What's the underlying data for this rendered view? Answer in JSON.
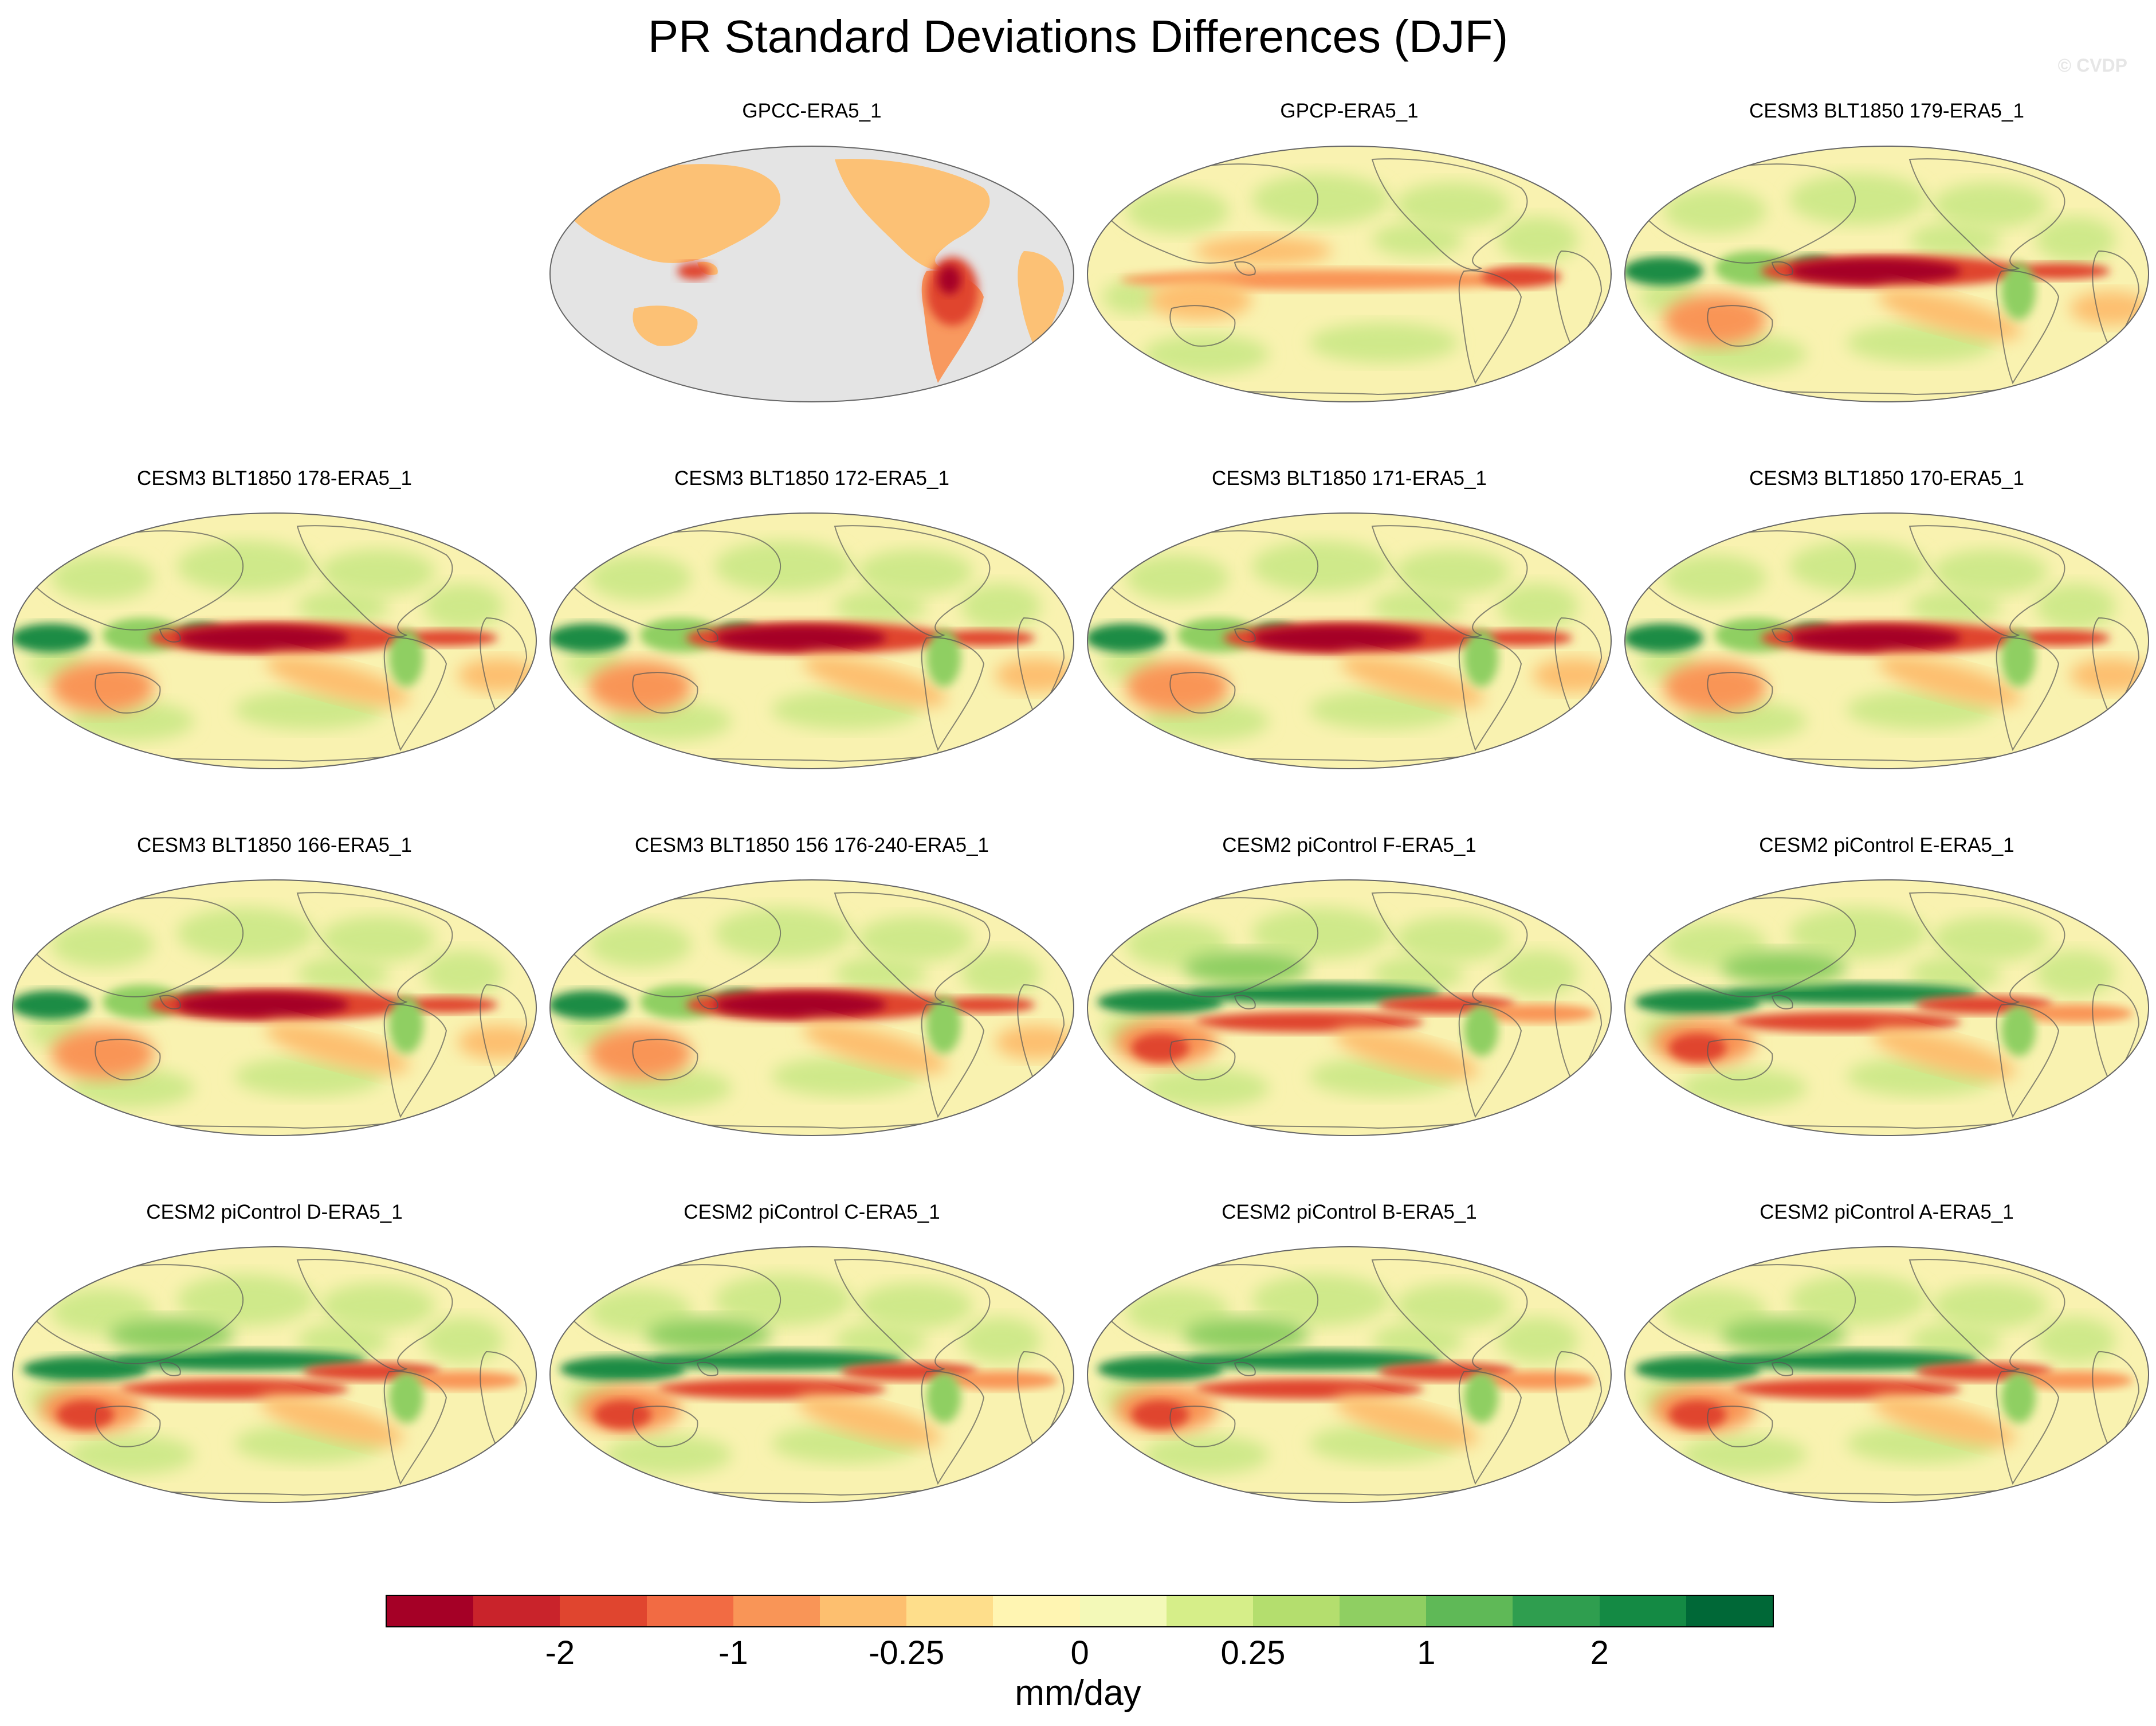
{
  "figure": {
    "title": "PR Standard Deviations Differences (DJF)",
    "watermark": "© CVDP",
    "units": "mm/day"
  },
  "panels": [
    {
      "title": "GPCC-ERA5_1",
      "type": "land-only",
      "row": 0,
      "col": 1
    },
    {
      "title": "GPCP-ERA5_1",
      "type": "obs",
      "row": 0,
      "col": 2
    },
    {
      "title": "CESM3 BLT1850 179-ERA5_1",
      "type": "cesm3",
      "row": 0,
      "col": 3
    },
    {
      "title": "CESM3 BLT1850 178-ERA5_1",
      "type": "cesm3",
      "row": 1,
      "col": 0
    },
    {
      "title": "CESM3 BLT1850 172-ERA5_1",
      "type": "cesm3",
      "row": 1,
      "col": 1
    },
    {
      "title": "CESM3 BLT1850 171-ERA5_1",
      "type": "cesm3",
      "row": 1,
      "col": 2
    },
    {
      "title": "CESM3 BLT1850 170-ERA5_1",
      "type": "cesm3",
      "row": 1,
      "col": 3
    },
    {
      "title": "CESM3 BLT1850 166-ERA5_1",
      "type": "cesm3",
      "row": 2,
      "col": 0
    },
    {
      "title": "CESM3 BLT1850 156 176-240-ERA5_1",
      "type": "cesm3",
      "row": 2,
      "col": 1
    },
    {
      "title": "CESM2 piControl F-ERA5_1",
      "type": "cesm2",
      "row": 2,
      "col": 2
    },
    {
      "title": "CESM2 piControl E-ERA5_1",
      "type": "cesm2",
      "row": 2,
      "col": 3
    },
    {
      "title": "CESM2 piControl D-ERA5_1",
      "type": "cesm2",
      "row": 3,
      "col": 0
    },
    {
      "title": "CESM2 piControl C-ERA5_1",
      "type": "cesm2",
      "row": 3,
      "col": 1
    },
    {
      "title": "CESM2 piControl B-ERA5_1",
      "type": "cesm2",
      "row": 3,
      "col": 2
    },
    {
      "title": "CESM2 piControl A-ERA5_1",
      "type": "cesm2",
      "row": 3,
      "col": 3
    }
  ],
  "colorbar": {
    "colors": [
      "#a50026",
      "#c9232b",
      "#e0452f",
      "#f26b43",
      "#f99557",
      "#fdbf6f",
      "#fede8b",
      "#fff5b2",
      "#f3f9b8",
      "#d6ee89",
      "#b4de6e",
      "#8fcf62",
      "#5fb957",
      "#2f9e4f",
      "#148a44",
      "#006837"
    ],
    "labels": [
      "-2",
      "-1",
      "-0.25",
      "0",
      "0.25",
      "1",
      "2"
    ]
  },
  "map_colors": {
    "ocean_background": "#f9f2b0",
    "missing": "#e4e4e4",
    "coastline": "#555555",
    "green_light": "#cfe98a",
    "green_mid": "#8fcf62",
    "green_dark": "#1a8c44",
    "red_dark": "#a50026",
    "red_mid": "#e0452f",
    "orange": "#f99557",
    "orange_light": "#fdbf6f"
  }
}
